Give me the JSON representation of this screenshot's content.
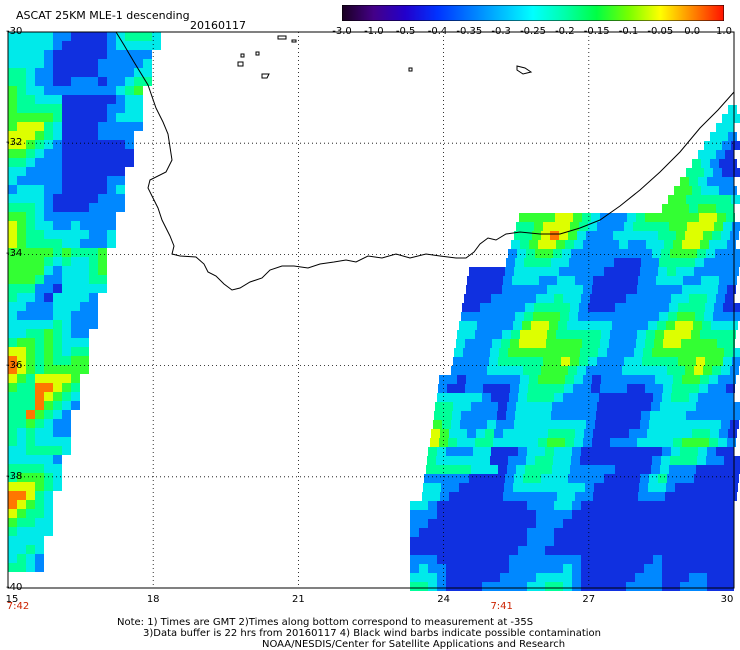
{
  "header": {
    "title": "ASCAT 25KM MLE-1 descending",
    "date": "20160117"
  },
  "colorbar": {
    "labels": [
      "-3.0",
      "-1.0",
      "-0.5",
      "-0.4",
      "-0.35",
      "-0.3",
      "-0.25",
      "-0.2",
      "-0.15",
      "-0.1",
      "-0.05",
      "0.0",
      "1.0"
    ],
    "colors": [
      "#1a0020",
      "#440088",
      "#2200cc",
      "#0033ff",
      "#0077ff",
      "#00bbff",
      "#00ffff",
      "#00ffaa",
      "#00ff44",
      "#77ff00",
      "#ffff00",
      "#ff8800",
      "#ff1100"
    ]
  },
  "map": {
    "lon_range": [
      15,
      30
    ],
    "lat_range": [
      -40,
      -30
    ],
    "lon_ticks": [
      "15",
      "18",
      "21",
      "24",
      "27",
      "30"
    ],
    "lat_ticks": [
      "-30",
      "-32",
      "-34",
      "-36",
      "-38",
      "-40"
    ],
    "times": [
      {
        "lon": 15,
        "label": "7:42"
      },
      {
        "lon": 25.2,
        "label": "7:41"
      }
    ]
  },
  "notes": {
    "line1": "Note: 1) Times are GMT 2)Times along bottom correspond to measurement at -35S",
    "line2": "3)Data buffer is 22 hrs from 20160117 4) Black wind barbs indicate possible contamination",
    "line3": "NOAA/NESDIS/Center for Satellite Applications and Research"
  }
}
